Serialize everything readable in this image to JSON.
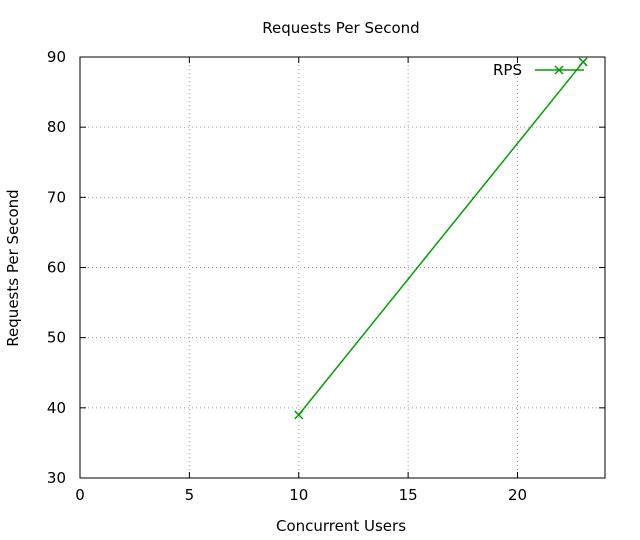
{
  "chart_data": {
    "type": "line",
    "title": "Requests Per Second",
    "xlabel": "Concurrent Users",
    "ylabel": "Requests Per Second",
    "xlim": [
      0,
      24
    ],
    "ylim": [
      30,
      90
    ],
    "xticks": [
      0,
      5,
      10,
      15,
      20
    ],
    "yticks": [
      30,
      40,
      50,
      60,
      70,
      80,
      90
    ],
    "grid": true,
    "legend_position": "top-right",
    "series": [
      {
        "name": "RPS",
        "color": "#00a000",
        "marker": "x",
        "x": [
          10,
          23
        ],
        "y": [
          39,
          89.3
        ]
      }
    ]
  }
}
